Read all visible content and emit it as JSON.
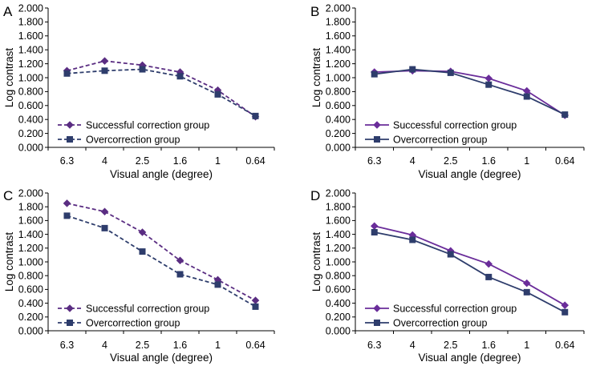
{
  "chart_data": [
    {
      "panel": "A",
      "type": "line",
      "line_style": "dashed",
      "categories": [
        "6.3",
        "4",
        "2.5",
        "1.6",
        "1",
        "0.64"
      ],
      "series": [
        {
          "name": "Successful correction group",
          "marker": "diamond",
          "color": "#5a2d82",
          "values": [
            1.1,
            1.24,
            1.18,
            1.08,
            0.82,
            0.44
          ]
        },
        {
          "name": "Overcorrection group",
          "marker": "square",
          "color": "#2e3d6c",
          "values": [
            1.06,
            1.1,
            1.12,
            1.02,
            0.76,
            0.45
          ]
        }
      ],
      "xlabel": "Visual angle (degree)",
      "ylabel": "Log contrast",
      "ylim": [
        0,
        2
      ],
      "yticks": [
        "0.000",
        "0.200",
        "0.400",
        "0.600",
        "0.800",
        "1.000",
        "1.200",
        "1.400",
        "1.600",
        "1.800",
        "2.000"
      ],
      "legend": "bottom-left"
    },
    {
      "panel": "B",
      "type": "line",
      "line_style": "solid",
      "categories": [
        "6.3",
        "4",
        "2.5",
        "1.6",
        "1",
        "0.64"
      ],
      "series": [
        {
          "name": "Successful correction group",
          "marker": "diamond",
          "color": "#6a2d9a",
          "values": [
            1.08,
            1.1,
            1.09,
            0.99,
            0.81,
            0.46
          ]
        },
        {
          "name": "Overcorrection group",
          "marker": "square",
          "color": "#2e3d6c",
          "values": [
            1.05,
            1.12,
            1.07,
            0.9,
            0.73,
            0.47
          ]
        }
      ],
      "xlabel": "Visual angle (degree)",
      "ylabel": "Log contrast",
      "ylim": [
        0,
        2
      ],
      "yticks": [
        "0.000",
        "0.200",
        "0.400",
        "0.600",
        "0.800",
        "1.000",
        "1.200",
        "1.400",
        "1.600",
        "1.800",
        "2.000"
      ],
      "legend": "bottom-left"
    },
    {
      "panel": "C",
      "type": "line",
      "line_style": "dashed",
      "categories": [
        "6.3",
        "4",
        "2.5",
        "1.6",
        "1",
        "0.64"
      ],
      "series": [
        {
          "name": "Successful correction group",
          "marker": "diamond",
          "color": "#5a2d82",
          "values": [
            1.85,
            1.73,
            1.43,
            1.02,
            0.74,
            0.44
          ]
        },
        {
          "name": "Overcorrection group",
          "marker": "square",
          "color": "#2e3d6c",
          "values": [
            1.67,
            1.49,
            1.15,
            0.82,
            0.67,
            0.35
          ]
        }
      ],
      "xlabel": "Visual angle (degree)",
      "ylabel": "Log contrast",
      "ylim": [
        0,
        2
      ],
      "yticks": [
        "0.000",
        "0.200",
        "0.400",
        "0.600",
        "0.800",
        "1.000",
        "1.200",
        "1.400",
        "1.600",
        "1.800",
        "2.000"
      ],
      "legend": "bottom-left"
    },
    {
      "panel": "D",
      "type": "line",
      "line_style": "solid",
      "categories": [
        "6.3",
        "4",
        "2.5",
        "1.6",
        "1",
        "0.64"
      ],
      "series": [
        {
          "name": "Successful correction group",
          "marker": "diamond",
          "color": "#6a2d9a",
          "values": [
            1.52,
            1.39,
            1.16,
            0.97,
            0.69,
            0.37
          ]
        },
        {
          "name": "Overcorrection group",
          "marker": "square",
          "color": "#2e3d6c",
          "values": [
            1.43,
            1.32,
            1.11,
            0.78,
            0.56,
            0.27
          ]
        }
      ],
      "xlabel": "Visual angle (degree)",
      "ylabel": "Log contrast",
      "ylim": [
        0,
        2
      ],
      "yticks": [
        "0.000",
        "0.200",
        "0.400",
        "0.600",
        "0.800",
        "1.000",
        "1.200",
        "1.400",
        "1.600",
        "1.800",
        "2.000"
      ],
      "legend": "bottom-left"
    }
  ]
}
